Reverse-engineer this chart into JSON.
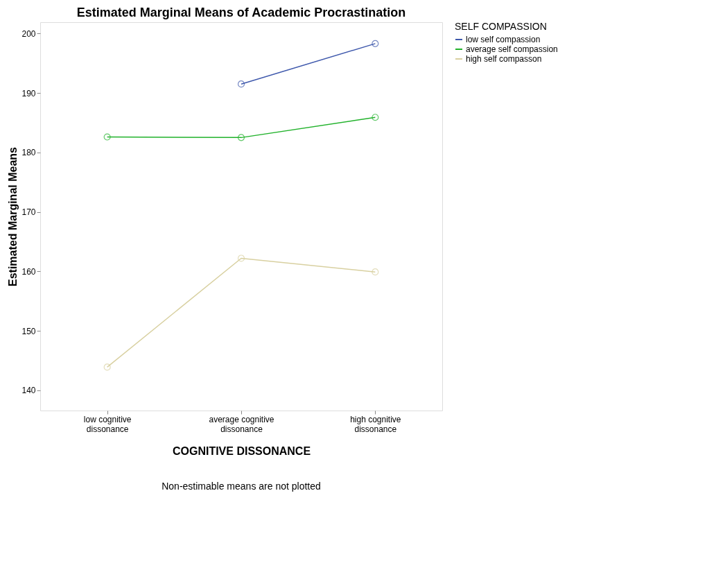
{
  "chart_data": {
    "type": "line",
    "title": "Estimated Marginal Means of Academic Procrastination",
    "xlabel": "COGNITIVE DISSONANCE",
    "ylabel": "Estimated Marginal Means",
    "legend_title": "SELF COMPASSION",
    "categories": [
      "low cognitive dissonance",
      "average cognitive dissonance",
      "high cognitive dissonance"
    ],
    "series": [
      {
        "name": "low self compassion",
        "color": "#3e58ac",
        "values": [
          null,
          191.5,
          198.3
        ]
      },
      {
        "name": "average self compassion",
        "color": "#21b22b",
        "values": [
          182.6,
          182.5,
          185.9
        ]
      },
      {
        "name": "high self compasson",
        "color": "#d8d0a0",
        "values": [
          143.9,
          162.2,
          159.9
        ]
      }
    ],
    "ylim": [
      136.6,
      201.9
    ],
    "yticks": [
      140,
      150,
      160,
      170,
      180,
      190,
      200
    ],
    "grid": false,
    "legend": "top right",
    "marker": "circle",
    "line_style": "solid",
    "annotations": [
      "Non-estimable means are not plotted"
    ]
  }
}
